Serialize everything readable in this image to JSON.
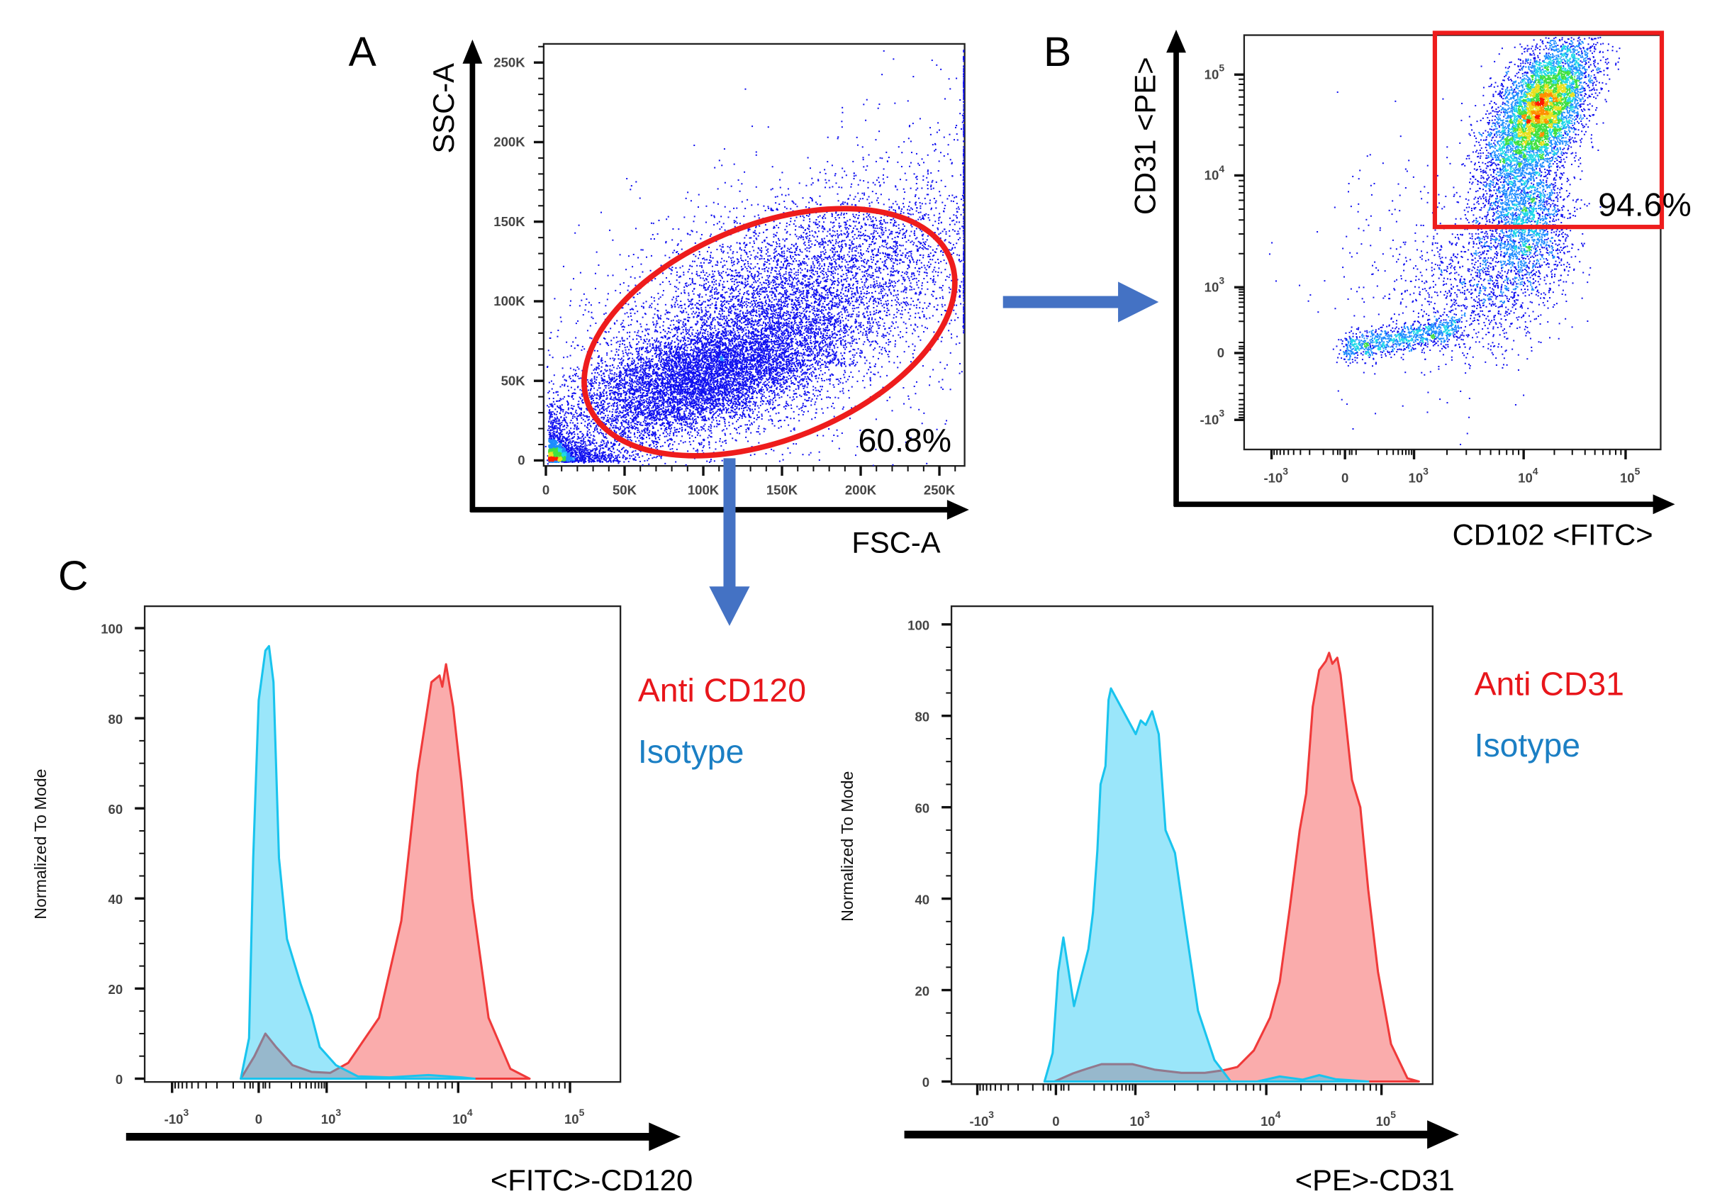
{
  "panels": {
    "a": "A",
    "b": "B",
    "c": "C"
  },
  "colors": {
    "gate": "#ee1c1c",
    "arrow": "#4472c4",
    "anti": "#e8161b",
    "isotype": "#1b7fc4",
    "anti_fill": "#f55a5a",
    "isotype_fill": "#22c8f5"
  },
  "chart_data": [
    {
      "type": "scatter",
      "panel": "A",
      "xlabel": "FSC-A",
      "ylabel": "SSC-A",
      "xlim": [
        0,
        262144
      ],
      "ylim": [
        0,
        262144
      ],
      "xticks": [
        {
          "value": 0,
          "label": "0"
        },
        {
          "value": 50000,
          "label": "50K"
        },
        {
          "value": 100000,
          "label": "100K"
        },
        {
          "value": 150000,
          "label": "150K"
        },
        {
          "value": 200000,
          "label": "200K"
        },
        {
          "value": 250000,
          "label": "250K"
        }
      ],
      "yticks": [
        {
          "value": 0,
          "label": "0"
        },
        {
          "value": 50000,
          "label": "50K"
        },
        {
          "value": 100000,
          "label": "100K"
        },
        {
          "value": 150000,
          "label": "150K"
        },
        {
          "value": 200000,
          "label": "200K"
        },
        {
          "value": 250000,
          "label": "250K"
        }
      ],
      "gate": {
        "shape": "ellipse",
        "percent": "60.8%"
      },
      "coloring": "density (blue-green-yellow-red)"
    },
    {
      "type": "scatter",
      "panel": "B",
      "xlabel": "CD102 <FITC>",
      "ylabel": "CD31 <PE>",
      "xscale": "biexponential",
      "yscale": "biexponential",
      "xticks": [
        {
          "value": -1000,
          "base": "-10",
          "exp": "3"
        },
        {
          "value": 0,
          "base": "0",
          "exp": ""
        },
        {
          "value": 1000,
          "base": "10",
          "exp": "3"
        },
        {
          "value": 10000,
          "base": "10",
          "exp": "4"
        },
        {
          "value": 100000,
          "base": "10",
          "exp": "5"
        }
      ],
      "yticks": [
        {
          "value": -1000,
          "base": "-10",
          "exp": "3"
        },
        {
          "value": 0,
          "base": "0",
          "exp": ""
        },
        {
          "value": 1000,
          "base": "10",
          "exp": "3"
        },
        {
          "value": 10000,
          "base": "10",
          "exp": "4"
        },
        {
          "value": 100000,
          "base": "10",
          "exp": "5"
        }
      ],
      "gate": {
        "shape": "rectangle",
        "percent": "94.6%"
      },
      "coloring": "density (blue-green-yellow-red)"
    },
    {
      "type": "area",
      "panel": "C-left",
      "xlabel": "<FITC>-CD120",
      "ylabel": "Normalized To Mode",
      "xscale": "biexponential",
      "ylim": [
        0,
        100
      ],
      "yticks": [
        0,
        20,
        40,
        60,
        80,
        100
      ],
      "xticks": [
        {
          "value": -1000,
          "base": "-10",
          "exp": "3"
        },
        {
          "value": 0,
          "base": "0",
          "exp": ""
        },
        {
          "value": 1000,
          "base": "10",
          "exp": "3"
        },
        {
          "value": 10000,
          "base": "10",
          "exp": "4"
        },
        {
          "value": 100000,
          "base": "10",
          "exp": "5"
        }
      ],
      "series": [
        {
          "name": "Anti CD120",
          "points": [
            [
              -66,
              0
            ],
            [
              -15,
              5
            ],
            [
              30,
              10
            ],
            [
              85,
              7
            ],
            [
              210,
              3
            ],
            [
              511,
              1.5
            ],
            [
              1063,
              1.3
            ],
            [
              1462,
              3.5
            ],
            [
              2506,
              13.5
            ],
            [
              3700,
              35
            ],
            [
              4920,
              68
            ],
            [
              6260,
              88
            ],
            [
              7220,
              89.5
            ],
            [
              7570,
              87
            ],
            [
              8090,
              92
            ],
            [
              9150,
              82.5
            ],
            [
              10670,
              66
            ],
            [
              13360,
              40
            ],
            [
              18700,
              13.5
            ],
            [
              29300,
              2.2
            ],
            [
              43500,
              0
            ]
          ]
        },
        {
          "name": "Isotype",
          "points": [
            [
              -66,
              0
            ],
            [
              -34,
              9
            ],
            [
              -19,
              49
            ],
            [
              0,
              84
            ],
            [
              30,
              95
            ],
            [
              47,
              96
            ],
            [
              70,
              88
            ],
            [
              102,
              49
            ],
            [
              160,
              31
            ],
            [
              311,
              21
            ],
            [
              511,
              14
            ],
            [
              737,
              7
            ],
            [
              1177,
              3
            ],
            [
              1725,
              0.5
            ],
            [
              3000,
              0.3
            ],
            [
              5940,
              0.8
            ],
            [
              10700,
              0.3
            ],
            [
              14000,
              0
            ]
          ]
        }
      ]
    },
    {
      "type": "area",
      "panel": "C-right",
      "xlabel": "<PE>-CD31",
      "ylabel": "Normalized To Mode",
      "xscale": "biexponential",
      "ylim": [
        0,
        100
      ],
      "yticks": [
        0,
        20,
        40,
        60,
        80,
        100
      ],
      "xticks": [
        {
          "value": -1000,
          "base": "-10",
          "exp": "3"
        },
        {
          "value": 0,
          "base": "0",
          "exp": ""
        },
        {
          "value": 1000,
          "base": "10",
          "exp": "3"
        },
        {
          "value": 10000,
          "base": "10",
          "exp": "4"
        },
        {
          "value": 100000,
          "base": "10",
          "exp": "5"
        }
      ],
      "series": [
        {
          "name": "Anti CD31",
          "points": [
            [
              -6,
              0
            ],
            [
              70,
              1.8
            ],
            [
              155,
              2.9
            ],
            [
              270,
              3.8
            ],
            [
              903,
              3.8
            ],
            [
              1400,
              2.6
            ],
            [
              2260,
              1.9
            ],
            [
              3390,
              1.9
            ],
            [
              4780,
              2.5
            ],
            [
              6030,
              3.2
            ],
            [
              8040,
              6.8
            ],
            [
              10800,
              14
            ],
            [
              13100,
              21.8
            ],
            [
              16000,
              38
            ],
            [
              19500,
              55
            ],
            [
              22200,
              63
            ],
            [
              25300,
              82
            ],
            [
              28800,
              90
            ],
            [
              32900,
              92
            ],
            [
              35100,
              93.8
            ],
            [
              37500,
              91.4
            ],
            [
              41400,
              92.7
            ],
            [
              44200,
              89
            ],
            [
              48100,
              80.6
            ],
            [
              55500,
              66
            ],
            [
              65500,
              60
            ],
            [
              76700,
              42
            ],
            [
              93200,
              24
            ],
            [
              121000,
              8.2
            ],
            [
              168000,
              0.7
            ],
            [
              211000,
              0
            ]
          ]
        },
        {
          "name": "Isotype",
          "points": [
            [
              -45,
              0
            ],
            [
              -12.5,
              6.2
            ],
            [
              8.6,
              24
            ],
            [
              28.6,
              31.5
            ],
            [
              50.5,
              24
            ],
            [
              73.5,
              16.5
            ],
            [
              109,
              22.6
            ],
            [
              155,
              29
            ],
            [
              190,
              37
            ],
            [
              228,
              50.5
            ],
            [
              260,
              65
            ],
            [
              317,
              69
            ],
            [
              357,
              83.5
            ],
            [
              392,
              86
            ],
            [
              1005,
              76
            ],
            [
              1100,
              79
            ],
            [
              1200,
              78
            ],
            [
              1345,
              81
            ],
            [
              1510,
              76
            ],
            [
              1700,
              55
            ],
            [
              2010,
              50
            ],
            [
              2390,
              35
            ],
            [
              3010,
              15.5
            ],
            [
              4020,
              4.7
            ],
            [
              5360,
              0
            ],
            [
              8500,
              0
            ],
            [
              13100,
              1.1
            ],
            [
              20700,
              0.4
            ],
            [
              28800,
              1.4
            ],
            [
              39900,
              0.5
            ],
            [
              76700,
              0
            ]
          ]
        }
      ]
    }
  ]
}
